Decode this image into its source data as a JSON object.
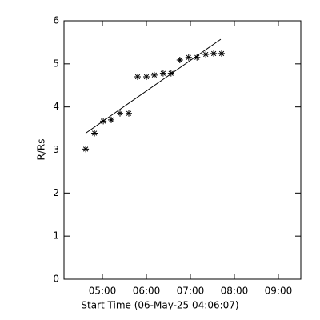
{
  "chart_data": {
    "type": "scatter",
    "x_label": "Start Time (06-May-25 04:06:07)",
    "y_label": "R/Rs",
    "x": [
      4.62,
      4.82,
      5.02,
      5.2,
      5.4,
      5.6,
      5.8,
      6.0,
      6.18,
      6.38,
      6.56,
      6.76,
      6.96,
      7.15,
      7.35,
      7.53,
      7.71
    ],
    "values": [
      3.02,
      3.39,
      3.67,
      3.7,
      3.85,
      3.85,
      4.7,
      4.7,
      4.74,
      4.78,
      4.78,
      5.09,
      5.15,
      5.15,
      5.22,
      5.24,
      5.24
    ],
    "fit": {
      "x": [
        4.62,
        7.69
      ],
      "values": [
        3.39,
        5.57
      ]
    },
    "color": "#000000",
    "xlim": [
      4.127,
      9.51
    ],
    "xticks": [
      {
        "value": 5,
        "label": "05:00"
      },
      {
        "value": 6,
        "label": "06:00"
      },
      {
        "value": 7,
        "label": "07:00"
      },
      {
        "value": 8,
        "label": "08:00"
      },
      {
        "value": 9,
        "label": "09:00"
      }
    ],
    "ylim": [
      0,
      6
    ],
    "yticks": [
      0,
      1,
      2,
      3,
      4,
      5,
      6
    ]
  }
}
